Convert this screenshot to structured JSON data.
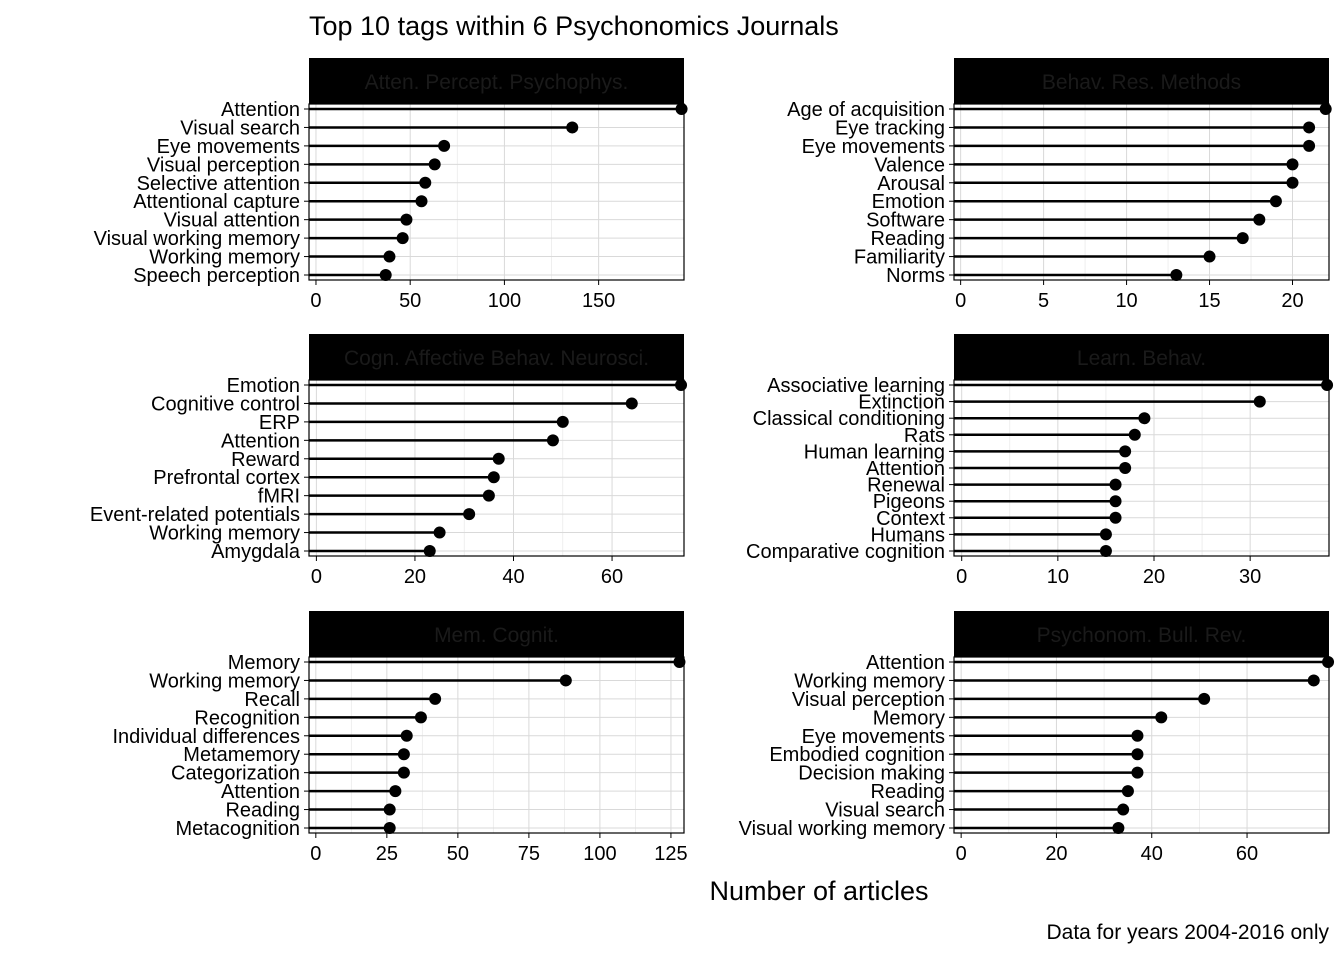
{
  "title": "Top 10 tags within 6 Psychonomics Journals",
  "xlabel": "Number of articles",
  "caption": "Data for years 2004-2016 only",
  "chart_data": [
    {
      "type": "lollipop",
      "facet": "Atten. Percept. Psychophys.",
      "categories": [
        "Attention",
        "Visual search",
        "Eye movements",
        "Visual perception",
        "Selective attention",
        "Attentional capture",
        "Visual attention",
        "Visual working memory",
        "Working memory",
        "Speech perception"
      ],
      "values": [
        194,
        136,
        68,
        63,
        58,
        56,
        48,
        46,
        39,
        37
      ],
      "xlim": [
        -3.7,
        195.3
      ],
      "xticks": [
        0,
        50,
        100,
        150
      ]
    },
    {
      "type": "lollipop",
      "facet": "Behav. Res. Methods",
      "categories": [
        "Age of acquisition",
        "Eye tracking",
        "Eye movements",
        "Valence",
        "Arousal",
        "Emotion",
        "Software",
        "Reading",
        "Familiarity",
        "Norms"
      ],
      "values": [
        22,
        21,
        21,
        20,
        20,
        19,
        18,
        17,
        15,
        13
      ],
      "xlim": [
        -0.4,
        22.2
      ],
      "xticks": [
        0,
        5,
        10,
        15,
        20
      ]
    },
    {
      "type": "lollipop",
      "facet": "Cogn. Affective Behav. Neurosci.",
      "categories": [
        "Emotion",
        "Cognitive control",
        "ERP",
        "Attention",
        "Reward",
        "Prefrontal cortex",
        "fMRI",
        "Event-related potentials",
        "Working memory",
        "Amygdala"
      ],
      "values": [
        74,
        64,
        50,
        48,
        37,
        36,
        35,
        31,
        25,
        23
      ],
      "xlim": [
        -1.5,
        74.6
      ],
      "xticks": [
        0,
        20,
        40,
        60
      ]
    },
    {
      "type": "lollipop",
      "facet": "Learn. Behav.",
      "categories": [
        "Associative learning",
        "Extinction",
        "Classical conditioning",
        "Rats",
        "Human learning",
        "Attention",
        "Renewal",
        "Pigeons",
        "Context",
        "Humans",
        "Comparative cognition"
      ],
      "values": [
        38,
        31,
        19,
        18,
        17,
        17,
        16,
        16,
        16,
        15,
        15
      ],
      "xlim": [
        -0.8,
        38.2
      ],
      "xticks": [
        0,
        10,
        20,
        30
      ]
    },
    {
      "type": "lollipop",
      "facet": "Mem. Cognit.",
      "categories": [
        "Memory",
        "Working memory",
        "Recall",
        "Recognition",
        "Individual differences",
        "Metamemory",
        "Categorization",
        "Attention",
        "Reading",
        "Metacognition"
      ],
      "values": [
        128,
        88,
        42,
        37,
        32,
        31,
        31,
        28,
        26,
        26
      ],
      "xlim": [
        -2.4,
        129.6
      ],
      "xticks": [
        0,
        25,
        50,
        75,
        100,
        125
      ]
    },
    {
      "type": "lollipop",
      "facet": "Psychonom. Bull. Rev.",
      "categories": [
        "Attention",
        "Working memory",
        "Visual perception",
        "Memory",
        "Eye movements",
        "Embodied cognition",
        "Decision making",
        "Reading",
        "Visual search",
        "Visual working memory"
      ],
      "values": [
        77,
        74,
        51,
        42,
        37,
        37,
        37,
        35,
        34,
        33
      ],
      "xlim": [
        -1.5,
        77.2
      ],
      "xticks": [
        0,
        20,
        40,
        60
      ]
    }
  ]
}
